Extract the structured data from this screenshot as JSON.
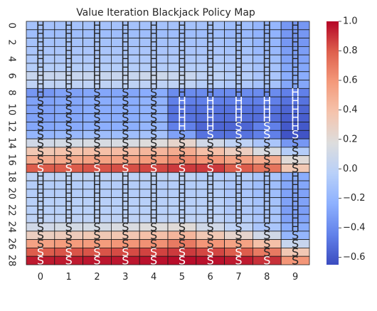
{
  "chart_data": {
    "type": "heatmap",
    "title": "Value Iteration Blackjack Policy Map",
    "xlabel": "",
    "ylabel": "",
    "x_tick_labels": [
      "0",
      "1",
      "2",
      "3",
      "4",
      "5",
      "6",
      "7",
      "8",
      "9"
    ],
    "y_tick_labels": [
      "0",
      "2",
      "4",
      "6",
      "8",
      "10",
      "12",
      "14",
      "16",
      "18",
      "20",
      "22",
      "24",
      "26",
      "28"
    ],
    "colormap": "coolwarm",
    "vmin": -0.65,
    "vmax": 1.0,
    "colorbar_ticks": [
      "1.0",
      "0.8",
      "0.6",
      "0.4",
      "0.2",
      "0.0",
      "−0.2",
      "−0.4",
      "−0.6"
    ],
    "values": [
      [
        -0.12,
        -0.12,
        -0.12,
        -0.12,
        -0.12,
        -0.12,
        -0.12,
        -0.15,
        -0.2,
        -0.35
      ],
      [
        -0.15,
        -0.15,
        -0.15,
        -0.15,
        -0.15,
        -0.15,
        -0.15,
        -0.18,
        -0.22,
        -0.35
      ],
      [
        -0.12,
        -0.12,
        -0.12,
        -0.12,
        -0.12,
        -0.12,
        -0.12,
        -0.15,
        -0.2,
        -0.35
      ],
      [
        -0.1,
        -0.1,
        -0.1,
        -0.1,
        -0.1,
        -0.1,
        -0.1,
        -0.12,
        -0.18,
        -0.32
      ],
      [
        -0.08,
        -0.08,
        -0.08,
        -0.08,
        -0.08,
        -0.08,
        -0.08,
        -0.1,
        -0.15,
        -0.3
      ],
      [
        -0.05,
        -0.05,
        -0.05,
        -0.05,
        -0.05,
        -0.05,
        -0.05,
        -0.08,
        -0.12,
        -0.28
      ],
      [
        0.05,
        0.05,
        0.05,
        0.05,
        0.08,
        0.05,
        0.0,
        -0.05,
        -0.1,
        -0.25
      ],
      [
        0.0,
        0.0,
        0.0,
        0.0,
        0.0,
        0.0,
        -0.05,
        -0.08,
        -0.12,
        -0.28
      ],
      [
        -0.35,
        -0.3,
        -0.28,
        -0.28,
        -0.25,
        -0.4,
        -0.4,
        -0.4,
        -0.4,
        -0.45
      ],
      [
        -0.3,
        -0.28,
        -0.25,
        -0.25,
        -0.22,
        -0.45,
        -0.45,
        -0.45,
        -0.45,
        -0.5
      ],
      [
        -0.3,
        -0.28,
        -0.25,
        -0.25,
        -0.22,
        -0.5,
        -0.5,
        -0.5,
        -0.5,
        -0.55
      ],
      [
        -0.3,
        -0.28,
        -0.25,
        -0.25,
        -0.22,
        -0.5,
        -0.52,
        -0.52,
        -0.52,
        -0.58
      ],
      [
        -0.28,
        -0.26,
        -0.24,
        -0.24,
        -0.2,
        -0.45,
        -0.55,
        -0.55,
        -0.45,
        -0.6
      ],
      [
        -0.2,
        -0.18,
        -0.15,
        -0.15,
        -0.12,
        -0.3,
        -0.5,
        -0.5,
        -0.45,
        -0.62
      ],
      [
        0.1,
        0.12,
        0.14,
        0.14,
        0.18,
        0.25,
        0.1,
        0.0,
        -0.1,
        -0.35
      ],
      [
        0.35,
        0.38,
        0.4,
        0.42,
        0.45,
        0.5,
        0.4,
        0.3,
        0.15,
        -0.05
      ],
      [
        0.5,
        0.52,
        0.55,
        0.55,
        0.58,
        0.65,
        0.6,
        0.55,
        0.5,
        0.2
      ],
      [
        0.8,
        0.8,
        0.82,
        0.83,
        0.85,
        0.88,
        0.88,
        0.8,
        0.72,
        0.35
      ],
      [
        0.0,
        0.0,
        0.0,
        0.0,
        0.0,
        0.0,
        -0.05,
        -0.05,
        -0.1,
        -0.25
      ],
      [
        -0.05,
        -0.05,
        -0.05,
        -0.05,
        -0.05,
        -0.05,
        -0.05,
        -0.1,
        -0.15,
        -0.28
      ],
      [
        -0.05,
        -0.05,
        -0.05,
        -0.05,
        -0.05,
        -0.05,
        -0.05,
        -0.1,
        -0.15,
        -0.3
      ],
      [
        -0.03,
        -0.03,
        -0.03,
        -0.03,
        -0.03,
        -0.03,
        -0.03,
        -0.08,
        -0.12,
        -0.3
      ],
      [
        -0.03,
        -0.03,
        -0.03,
        -0.03,
        -0.03,
        -0.03,
        -0.03,
        -0.08,
        -0.12,
        -0.32
      ],
      [
        0.0,
        0.0,
        0.0,
        0.0,
        0.0,
        0.0,
        0.0,
        -0.05,
        -0.1,
        -0.3
      ],
      [
        0.1,
        0.12,
        0.12,
        0.15,
        0.18,
        0.2,
        0.1,
        0.0,
        -0.1,
        -0.25
      ],
      [
        0.3,
        0.32,
        0.35,
        0.36,
        0.4,
        0.45,
        0.35,
        0.25,
        0.1,
        -0.2
      ],
      [
        0.55,
        0.58,
        0.58,
        0.6,
        0.62,
        0.7,
        0.6,
        0.55,
        0.4,
        0.05
      ],
      [
        0.8,
        0.82,
        0.82,
        0.84,
        0.86,
        0.88,
        0.85,
        0.8,
        0.7,
        0.35
      ],
      [
        0.95,
        0.95,
        0.96,
        0.96,
        0.97,
        0.98,
        0.97,
        0.95,
        0.9,
        0.6
      ]
    ],
    "annotations": [
      [
        "H",
        "H",
        "H",
        "H",
        "H",
        "H",
        "H",
        "H",
        "H",
        "H"
      ],
      [
        "H",
        "H",
        "H",
        "H",
        "H",
        "H",
        "H",
        "H",
        "H",
        "H"
      ],
      [
        "H",
        "H",
        "H",
        "H",
        "H",
        "H",
        "H",
        "H",
        "H",
        "H"
      ],
      [
        "H",
        "H",
        "H",
        "H",
        "H",
        "H",
        "H",
        "H",
        "H",
        "H"
      ],
      [
        "H",
        "H",
        "H",
        "H",
        "H",
        "H",
        "H",
        "H",
        "H",
        "H"
      ],
      [
        "H",
        "H",
        "H",
        "H",
        "H",
        "H",
        "H",
        "H",
        "H",
        "H"
      ],
      [
        "H",
        "H",
        "H",
        "H",
        "H",
        "H",
        "H",
        "H",
        "H",
        "H"
      ],
      [
        "H",
        "H",
        "H",
        "H",
        "H",
        "H",
        "H",
        "H",
        "H",
        "H"
      ],
      [
        "H",
        "S",
        "S",
        "S",
        "S",
        "H",
        "H",
        "H",
        "H",
        "H"
      ],
      [
        "S",
        "S",
        "S",
        "S",
        "S",
        "H",
        "H",
        "H",
        "H",
        "H"
      ],
      [
        "S",
        "S",
        "S",
        "S",
        "S",
        "H",
        "H",
        "H",
        "H",
        "H"
      ],
      [
        "S",
        "S",
        "S",
        "S",
        "S",
        "H",
        "H",
        "H",
        "H",
        "H"
      ],
      [
        "S",
        "S",
        "S",
        "S",
        "S",
        "H",
        "H",
        "S",
        "S",
        "H"
      ],
      [
        "S",
        "S",
        "S",
        "S",
        "S",
        "S",
        "S",
        "S",
        "S",
        "S"
      ],
      [
        "S",
        "S",
        "S",
        "S",
        "S",
        "S",
        "S",
        "S",
        "S",
        "S"
      ],
      [
        "S",
        "S",
        "S",
        "S",
        "S",
        "S",
        "S",
        "S",
        "S",
        "S"
      ],
      [
        "S",
        "S",
        "S",
        "S",
        "S",
        "S",
        "S",
        "S",
        "S",
        "S"
      ],
      [
        "S",
        "S",
        "S",
        "S",
        "S",
        "S",
        "S",
        "S",
        "S",
        "S"
      ],
      [
        "H",
        "H",
        "H",
        "H",
        "H",
        "H",
        "H",
        "H",
        "H",
        "H"
      ],
      [
        "H",
        "H",
        "H",
        "H",
        "H",
        "H",
        "H",
        "H",
        "H",
        "H"
      ],
      [
        "H",
        "H",
        "H",
        "H",
        "H",
        "H",
        "H",
        "H",
        "H",
        "H"
      ],
      [
        "H",
        "H",
        "H",
        "H",
        "H",
        "H",
        "H",
        "H",
        "H",
        "H"
      ],
      [
        "H",
        "H",
        "H",
        "H",
        "H",
        "H",
        "H",
        "H",
        "H",
        "H"
      ],
      [
        "H",
        "H",
        "H",
        "H",
        "H",
        "H",
        "H",
        "H",
        "H",
        "H"
      ],
      [
        "S",
        "S",
        "S",
        "S",
        "S",
        "S",
        "S",
        "S",
        "S",
        "H"
      ],
      [
        "S",
        "S",
        "S",
        "S",
        "S",
        "S",
        "S",
        "S",
        "S",
        "S"
      ],
      [
        "S",
        "S",
        "S",
        "S",
        "S",
        "S",
        "S",
        "S",
        "S",
        "S"
      ],
      [
        "S",
        "S",
        "S",
        "S",
        "S",
        "S",
        "S",
        "S",
        "S",
        "S"
      ],
      [
        "S",
        "S",
        "S",
        "S",
        "S",
        "S",
        "S",
        "S",
        "S",
        "S"
      ]
    ]
  }
}
